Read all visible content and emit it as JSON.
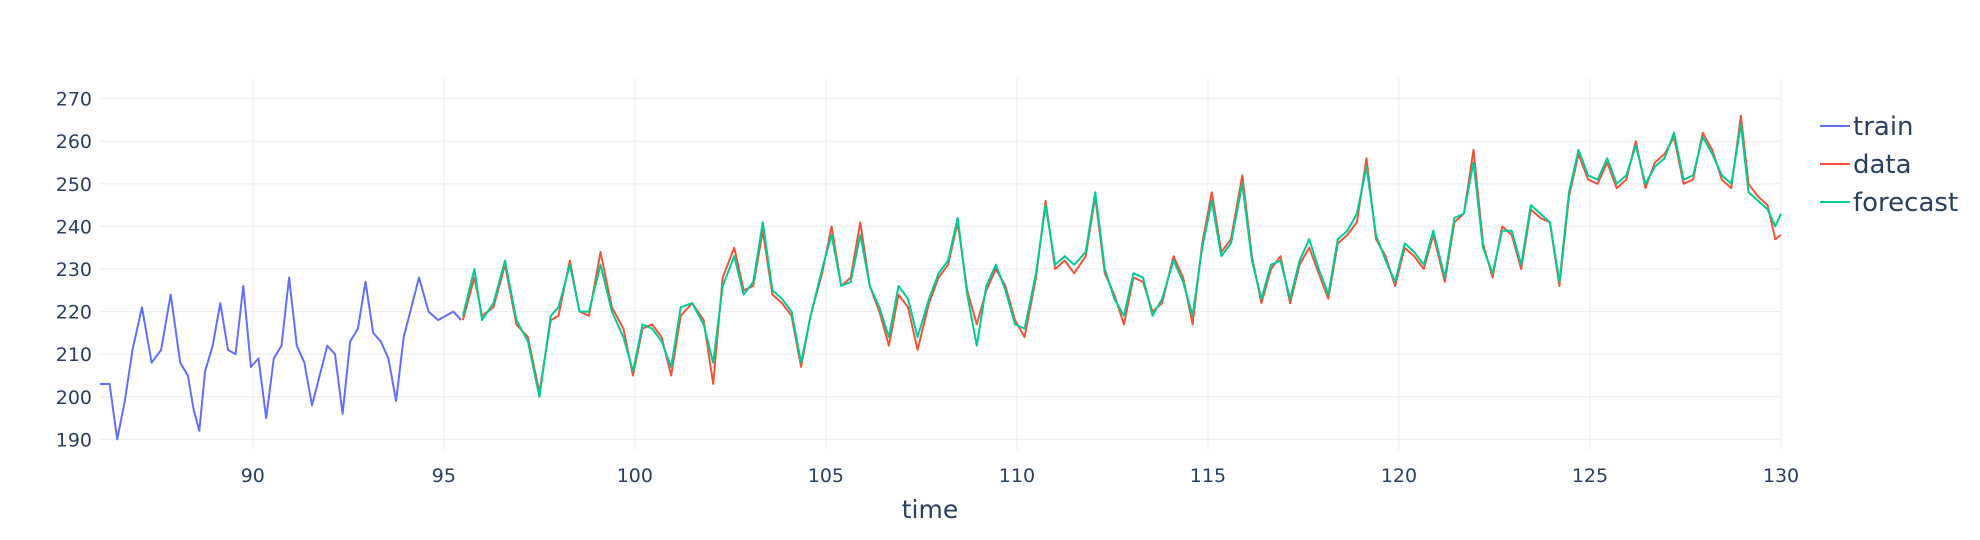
{
  "chart_data": {
    "type": "line",
    "title": "",
    "xlabel": "time",
    "ylabel": "",
    "xlim": [
      86.0,
      130.0
    ],
    "ylim": [
      187.5,
      272.5
    ],
    "x_ticks": [
      90,
      95,
      100,
      105,
      110,
      115,
      120,
      125,
      130
    ],
    "y_ticks": [
      190,
      200,
      210,
      220,
      230,
      240,
      250,
      260,
      270
    ],
    "grid": true,
    "legend_position": "top-right",
    "series": [
      {
        "name": "train",
        "color": "#636efa",
        "x": [
          86.0,
          86.25,
          86.45,
          86.65,
          86.85,
          87.1,
          87.35,
          87.6,
          87.85,
          88.1,
          88.3,
          88.45,
          88.6,
          88.75,
          88.95,
          89.15,
          89.35,
          89.55,
          89.75,
          89.95,
          90.15,
          90.35,
          90.55,
          90.75,
          90.95,
          91.15,
          91.35,
          91.55,
          91.75,
          91.95,
          92.15,
          92.35,
          92.55,
          92.75,
          92.95,
          93.15,
          93.35,
          93.55,
          93.75,
          93.95,
          94.15,
          94.35,
          94.6,
          94.85,
          95.05,
          95.25,
          95.45
        ],
        "y": [
          203,
          203,
          190,
          199,
          211,
          221,
          208,
          211,
          224,
          208,
          205,
          197,
          192,
          206,
          212,
          222,
          211,
          210,
          226,
          207,
          209,
          195,
          209,
          212,
          228,
          212,
          208,
          198,
          205,
          212,
          210,
          196,
          213,
          216,
          227,
          215,
          213,
          209,
          199,
          214,
          221,
          228,
          220,
          218,
          219,
          220,
          218
        ]
      },
      {
        "name": "data",
        "color": "#ef553b",
        "x": [
          95.5,
          95.8,
          96.0,
          96.3,
          96.6,
          96.9,
          97.2,
          97.5,
          97.8,
          98.0,
          98.3,
          98.55,
          98.8,
          99.1,
          99.4,
          99.7,
          99.95,
          100.2,
          100.45,
          100.7,
          100.95,
          101.2,
          101.5,
          101.8,
          102.05,
          102.3,
          102.6,
          102.85,
          103.1,
          103.35,
          103.6,
          103.85,
          104.1,
          104.35,
          104.6,
          104.9,
          105.15,
          105.4,
          105.65,
          105.9,
          106.15,
          106.4,
          106.65,
          106.9,
          107.15,
          107.4,
          107.7,
          107.95,
          108.2,
          108.45,
          108.7,
          108.95,
          109.2,
          109.45,
          109.7,
          109.95,
          110.2,
          110.5,
          110.75,
          111.0,
          111.25,
          111.5,
          111.8,
          112.05,
          112.3,
          112.55,
          112.8,
          113.05,
          113.3,
          113.55,
          113.8,
          114.1,
          114.35,
          114.6,
          114.85,
          115.1,
          115.35,
          115.6,
          115.9,
          116.15,
          116.4,
          116.65,
          116.9,
          117.15,
          117.4,
          117.65,
          117.9,
          118.15,
          118.4,
          118.65,
          118.9,
          119.15,
          119.4,
          119.65,
          119.9,
          120.15,
          120.4,
          120.65,
          120.9,
          121.2,
          121.45,
          121.7,
          121.95,
          122.2,
          122.45,
          122.7,
          122.95,
          123.2,
          123.45,
          123.7,
          123.95,
          124.2,
          124.45,
          124.7,
          124.95,
          125.2,
          125.45,
          125.7,
          125.95,
          126.2,
          126.45,
          126.7,
          126.95,
          127.2,
          127.45,
          127.7,
          127.95,
          128.2,
          128.45,
          128.7,
          128.95,
          129.15,
          129.4,
          129.65,
          129.85,
          130.0
        ],
        "y": [
          218,
          228,
          219,
          221,
          231,
          217,
          214,
          201,
          218,
          219,
          232,
          220,
          219,
          234,
          221,
          216,
          205,
          216,
          217,
          214,
          205,
          219,
          222,
          218,
          203,
          228,
          235,
          225,
          226,
          239,
          224,
          222,
          219,
          207,
          219,
          229,
          240,
          226,
          228,
          241,
          226,
          220,
          212,
          224,
          221,
          211,
          222,
          228,
          231,
          241,
          225,
          217,
          225,
          230,
          226,
          218,
          214,
          228,
          246,
          230,
          232,
          229,
          233,
          247,
          229,
          224,
          217,
          228,
          227,
          220,
          222,
          233,
          228,
          217,
          236,
          248,
          234,
          237,
          252,
          233,
          222,
          230,
          233,
          222,
          231,
          235,
          229,
          223,
          236,
          238,
          241,
          256,
          237,
          233,
          226,
          235,
          233,
          230,
          238,
          227,
          241,
          243,
          258,
          236,
          228,
          240,
          238,
          230,
          244,
          242,
          241,
          226,
          247,
          257,
          251,
          250,
          255,
          249,
          251,
          260,
          249,
          255,
          257,
          261,
          250,
          251,
          262,
          258,
          251,
          249,
          266,
          250,
          247,
          245,
          237,
          238
        ]
      },
      {
        "name": "forecast",
        "color": "#00cc96",
        "x": [
          95.5,
          95.8,
          96.0,
          96.3,
          96.6,
          96.9,
          97.2,
          97.5,
          97.8,
          98.0,
          98.3,
          98.55,
          98.8,
          99.1,
          99.4,
          99.7,
          99.95,
          100.2,
          100.45,
          100.7,
          100.95,
          101.2,
          101.5,
          101.8,
          102.05,
          102.3,
          102.6,
          102.85,
          103.1,
          103.35,
          103.6,
          103.85,
          104.1,
          104.35,
          104.6,
          104.9,
          105.15,
          105.4,
          105.65,
          105.9,
          106.15,
          106.4,
          106.65,
          106.9,
          107.15,
          107.4,
          107.7,
          107.95,
          108.2,
          108.45,
          108.7,
          108.95,
          109.2,
          109.45,
          109.7,
          109.95,
          110.2,
          110.5,
          110.75,
          111.0,
          111.25,
          111.5,
          111.8,
          112.05,
          112.3,
          112.55,
          112.8,
          113.05,
          113.3,
          113.55,
          113.8,
          114.1,
          114.35,
          114.6,
          114.85,
          115.1,
          115.35,
          115.6,
          115.9,
          116.15,
          116.4,
          116.65,
          116.9,
          117.15,
          117.4,
          117.65,
          117.9,
          118.15,
          118.4,
          118.65,
          118.9,
          119.15,
          119.4,
          119.65,
          119.9,
          120.15,
          120.4,
          120.65,
          120.9,
          121.2,
          121.45,
          121.7,
          121.95,
          122.2,
          122.45,
          122.7,
          122.95,
          123.2,
          123.45,
          123.7,
          123.95,
          124.2,
          124.45,
          124.7,
          124.95,
          125.2,
          125.45,
          125.7,
          125.95,
          126.2,
          126.45,
          126.7,
          126.95,
          127.2,
          127.45,
          127.7,
          127.95,
          128.2,
          128.45,
          128.7,
          128.95,
          129.15,
          129.4,
          129.65,
          129.85,
          130.0
        ],
        "y": [
          219,
          230,
          218,
          222,
          232,
          218,
          213,
          200,
          219,
          221,
          231,
          220,
          220,
          231,
          220,
          214,
          206,
          217,
          216,
          213,
          207,
          221,
          222,
          217,
          208,
          226,
          233,
          224,
          227,
          241,
          225,
          223,
          220,
          208,
          219,
          230,
          238,
          226,
          227,
          238,
          226,
          221,
          214,
          226,
          223,
          214,
          223,
          229,
          232,
          242,
          224,
          212,
          226,
          231,
          225,
          217,
          216,
          229,
          245,
          231,
          233,
          231,
          234,
          248,
          230,
          223,
          219,
          229,
          228,
          219,
          223,
          232,
          227,
          219,
          235,
          246,
          233,
          236,
          250,
          232,
          223,
          231,
          232,
          223,
          232,
          237,
          230,
          224,
          237,
          239,
          243,
          254,
          238,
          232,
          227,
          236,
          234,
          231,
          239,
          228,
          242,
          243,
          255,
          235,
          229,
          239,
          239,
          231,
          245,
          243,
          241,
          227,
          248,
          258,
          252,
          251,
          256,
          250,
          252,
          259,
          250,
          254,
          256,
          262,
          251,
          252,
          261,
          257,
          252,
          250,
          264,
          248,
          246,
          244,
          240,
          243
        ]
      }
    ]
  }
}
